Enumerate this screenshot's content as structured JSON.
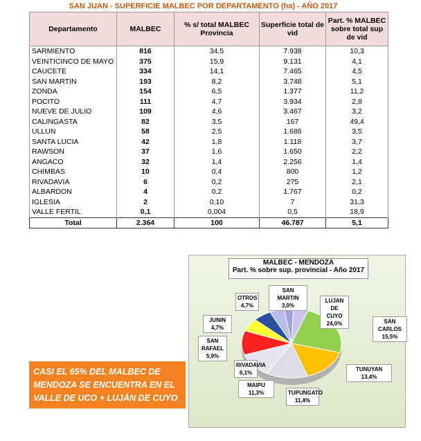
{
  "title": "SAN JUAN - SUPERFICIE MALBEC POR DEPARTAMENTO (ha) - AÑO 2017",
  "table": {
    "headers": [
      "Departamento",
      "MALBEC",
      "% s/ total MALBEC Provincia",
      "Superficie total de vid",
      "Part. % MALBEC sobre total sup de vid"
    ],
    "rows": [
      [
        "SARMIENTO",
        "816",
        "34,5",
        "7.938",
        "10,3"
      ],
      [
        "VEINTICINCO DE MAYO",
        "375",
        "15,9",
        "9.131",
        "4,1"
      ],
      [
        "CAUCETE",
        "334",
        "14,1",
        "7.465",
        "4,5"
      ],
      [
        "SAN MARTIN",
        "193",
        "8,2",
        "3.748",
        "5,1"
      ],
      [
        "ZONDA",
        "154",
        "6,5",
        "1.377",
        "11,2"
      ],
      [
        "POCITO",
        "111",
        "4,7",
        "3.934",
        "2,8"
      ],
      [
        "NUEVE DE JULIO",
        "109",
        "4,6",
        "3.467",
        "3,2"
      ],
      [
        "CALINGASTA",
        "82",
        "3,5",
        "167",
        "49,4"
      ],
      [
        "ULLUN",
        "58",
        "2,5",
        "1.686",
        "3,5"
      ],
      [
        "SANTA LUCIA",
        "42",
        "1,8",
        "1.118",
        "3,7"
      ],
      [
        "RAWSON",
        "37",
        "1,6",
        "1.650",
        "2,2"
      ],
      [
        "ANGACO",
        "32",
        "1,4",
        "2.256",
        "1,4"
      ],
      [
        "CHIMBAS",
        "10",
        "0,4",
        "800",
        "1,2"
      ],
      [
        "RIVADAVIA",
        "6",
        "0,2",
        "275",
        "2,1"
      ],
      [
        "ALBARDON",
        "4",
        "0,2",
        "1.767",
        "0,2"
      ],
      [
        "IGLESIA",
        "2",
        "0,10",
        "7",
        "31,3"
      ],
      [
        "VALLE FERTIL",
        "0,1",
        "0,004",
        "0,5",
        "18,9"
      ]
    ],
    "total": [
      "Total",
      "2.364",
      "100",
      "46.787",
      "5,1"
    ]
  },
  "chart_data": {
    "type": "pie",
    "title": "MALBEC - MENDOZA",
    "subtitle": "Part. % sobre sup. provincial - Año 2017",
    "categories": [
      "SAN MARTIN",
      "OTROS",
      "LUJAN DE CUYO",
      "SAN CARLOS",
      "TUNUYAN",
      "TUPUNGATO",
      "MAIPU",
      "RIVADAVIA",
      "SAN RAFAEL",
      "JUNIN"
    ],
    "values": [
      3.0,
      4.7,
      24.0,
      15.5,
      13.4,
      11.4,
      11.3,
      6.1,
      5.9,
      4.7
    ],
    "value_labels": [
      "3,0%",
      "4,7%",
      "24,0%",
      "15,5%",
      "13,4%",
      "11,4%",
      "11,3%",
      "6,1%",
      "5,9%",
      "4,7%"
    ],
    "colors": [
      "#9fa3d6",
      "#c9c3f0",
      "#92d050",
      "#ffc000",
      "#dcdce6",
      "#e6e6ee",
      "#ff2020",
      "#ffff33",
      "#2a4fa0",
      "#b8bce8"
    ]
  },
  "callout": [
    "CASI EL 65% DEL MALBEC DE",
    "MENDOZA SE ENCUENTRA EN EL",
    "VALLE DE UCO + LUJÁN DE CUYO"
  ]
}
